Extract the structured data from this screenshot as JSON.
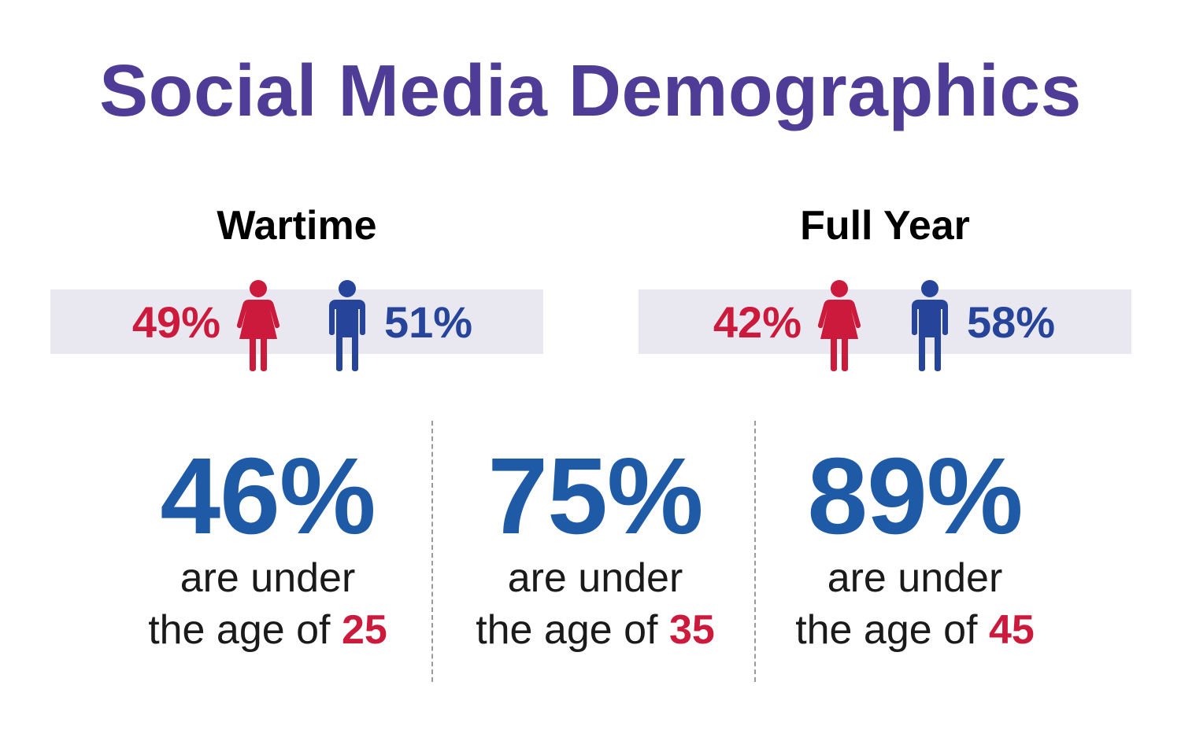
{
  "title": "Social Media Demographics",
  "colors": {
    "title": "#4f3c96",
    "female": "#cc1a3c",
    "male": "#25449a",
    "stat_number": "#1e5aa6",
    "band": "#e9e8f1"
  },
  "panels": [
    {
      "label": "Wartime",
      "female_pct": "49%",
      "male_pct": "51%"
    },
    {
      "label": "Full Year",
      "female_pct": "42%",
      "male_pct": "58%"
    }
  ],
  "icons": {
    "female": "woman-icon",
    "male": "man-icon"
  },
  "stats": [
    {
      "value": "46%",
      "line1": "are under",
      "line2": "the age of ",
      "age": "25"
    },
    {
      "value": "75%",
      "line1": "are under",
      "line2": "the age of ",
      "age": "35"
    },
    {
      "value": "89%",
      "line1": "are under",
      "line2": "the age of ",
      "age": "45"
    }
  ]
}
